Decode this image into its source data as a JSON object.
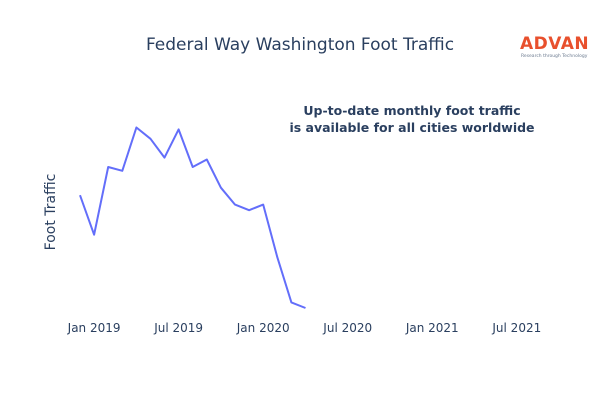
{
  "chart_data": {
    "type": "line",
    "title": "Federal Way Washington Foot Traffic",
    "xlabel": "",
    "ylabel": "Foot Traffic",
    "x_tick_labels": [
      "Jan 2019",
      "Jul 2019",
      "Jan 2020",
      "Jul 2020",
      "Jan 2021",
      "Jul 2021"
    ],
    "x_range": [
      "2018-12",
      "2021-09"
    ],
    "y_tick_labels_shown": false,
    "ylim": [
      0,
      100
    ],
    "grid": false,
    "series": [
      {
        "color": "#636efa",
        "x": [
          "2018-12",
          "2019-01",
          "2019-02",
          "2019-03",
          "2019-04",
          "2019-05",
          "2019-06",
          "2019-07",
          "2019-08",
          "2019-09",
          "2019-10",
          "2019-11",
          "2019-12",
          "2020-01",
          "2020-02",
          "2020-03",
          "2020-04"
        ],
        "values": [
          60,
          39,
          75,
          73,
          96,
          90,
          80,
          95,
          75,
          79,
          64,
          55,
          52,
          55,
          27,
          3,
          0
        ]
      }
    ],
    "annotation": [
      "Up-to-date monthly foot traffic",
      "is available for all cities worldwide"
    ]
  },
  "logo": {
    "name": "ADVAN",
    "tagline": "Research through Technology",
    "color": "#e8502d"
  }
}
